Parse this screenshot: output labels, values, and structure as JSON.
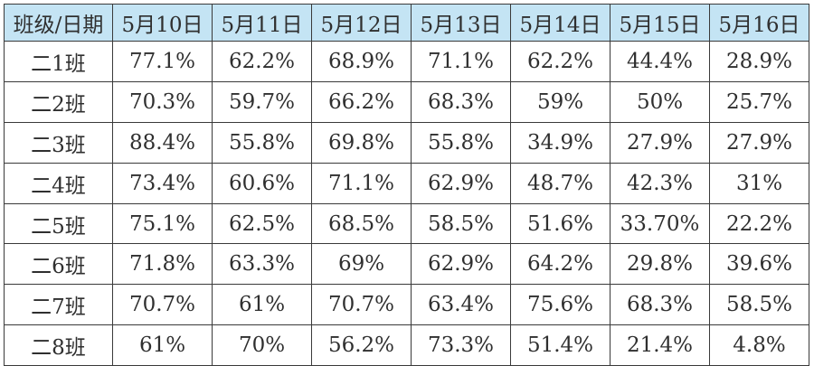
{
  "header": {
    "corner": "班级/日期",
    "dates": [
      "5月10日",
      "5月11日",
      "5月12日",
      "5月13日",
      "5月14日",
      "5月15日",
      "5月16日"
    ]
  },
  "rows": [
    {
      "class": "二1班",
      "values": [
        "77.1%",
        "62.2%",
        "68.9%",
        "71.1%",
        "62.2%",
        "44.4%",
        "28.9%"
      ]
    },
    {
      "class": "二2班",
      "values": [
        "70.3%",
        "59.7%",
        "66.2%",
        "68.3%",
        "59%",
        "50%",
        "25.7%"
      ]
    },
    {
      "class": "二3班",
      "values": [
        "88.4%",
        "55.8%",
        "69.8%",
        "55.8%",
        "34.9%",
        "27.9%",
        "27.9%"
      ]
    },
    {
      "class": "二4班",
      "values": [
        "73.4%",
        "60.6%",
        "71.1%",
        "62.9%",
        "48.7%",
        "42.3%",
        "31%"
      ]
    },
    {
      "class": "二5班",
      "values": [
        "75.1%",
        "62.5%",
        "68.5%",
        "58.5%",
        "51.6%",
        "33.70%",
        "22.2%"
      ]
    },
    {
      "class": "二6班",
      "values": [
        "71.8%",
        "63.3%",
        "69%",
        "62.9%",
        "64.2%",
        "29.8%",
        "39.6%"
      ]
    },
    {
      "class": "二7班",
      "values": [
        "70.7%",
        "61%",
        "70.7%",
        "63.4%",
        "75.6%",
        "68.3%",
        "58.5%"
      ]
    },
    {
      "class": "二8班",
      "values": [
        "61%",
        "70%",
        "56.2%",
        "73.3%",
        "51.4%",
        "21.4%",
        "4.8%"
      ]
    }
  ]
}
